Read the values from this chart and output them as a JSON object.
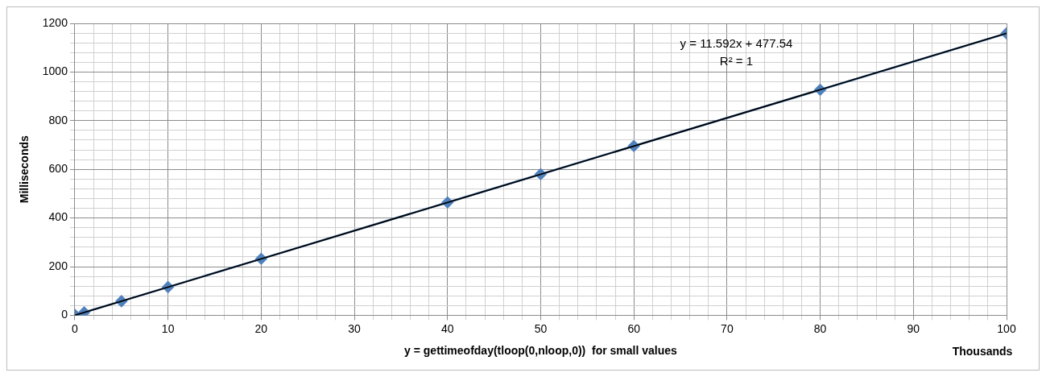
{
  "chart_data": {
    "type": "line",
    "xlabel": "y = gettimeofday(tloop(0,nloop,0))  for small values",
    "ylabel": "Milliseconds",
    "x": [
      0,
      1,
      5,
      10,
      20,
      40,
      50,
      60,
      80,
      100
    ],
    "series": [
      {
        "type": "line",
        "color": "#4f81bd",
        "marker": "diamond",
        "values": [
          2,
          12,
          58,
          116,
          232,
          464,
          580,
          696,
          927,
          1159
        ]
      },
      {
        "type": "line",
        "color": "#000000",
        "marker": "none",
        "x": [
          0,
          100
        ],
        "values": [
          0,
          1159
        ]
      }
    ],
    "xlim": [
      0,
      100
    ],
    "ylim": [
      0,
      1200
    ],
    "xticks": [
      0,
      {
        "value": 2,
        "label": null
      },
      {
        "value": 4,
        "label": null
      },
      {
        "value": 6,
        "label": null
      },
      {
        "value": 8,
        "label": null
      },
      10,
      {
        "value": 12,
        "label": null
      },
      {
        "value": 14,
        "label": null
      },
      {
        "value": 16,
        "label": null
      },
      {
        "value": 18,
        "label": null
      },
      20,
      {
        "value": 22,
        "label": null
      },
      {
        "value": 24,
        "label": null
      },
      {
        "value": 26,
        "label": null
      },
      {
        "value": 28,
        "label": null
      },
      30,
      {
        "value": 32,
        "label": null
      },
      {
        "value": 34,
        "label": null
      },
      {
        "value": 36,
        "label": null
      },
      {
        "value": 38,
        "label": null
      },
      40,
      {
        "value": 42,
        "label": null
      },
      {
        "value": 44,
        "label": null
      },
      {
        "value": 46,
        "label": null
      },
      {
        "value": 48,
        "label": null
      },
      50,
      {
        "value": 52,
        "label": null
      },
      {
        "value": 54,
        "label": null
      },
      {
        "value": 56,
        "label": null
      },
      {
        "value": 58,
        "label": null
      },
      60,
      {
        "value": 62,
        "label": null
      },
      {
        "value": 64,
        "label": null
      },
      {
        "value": 66,
        "label": null
      },
      {
        "value": 68,
        "label": null
      },
      70,
      {
        "value": 72,
        "label": null
      },
      {
        "value": 74,
        "label": null
      },
      {
        "value": 76,
        "label": null
      },
      {
        "value": 78,
        "label": null
      },
      80,
      {
        "value": 82,
        "label": null
      },
      {
        "value": 84,
        "label": null
      },
      {
        "value": 86,
        "label": null
      },
      {
        "value": 88,
        "label": null
      },
      90,
      {
        "value": 92,
        "label": null
      },
      {
        "value": 94,
        "label": null
      },
      {
        "value": 96,
        "label": null
      },
      {
        "value": 98,
        "label": null
      },
      100
    ],
    "yticks": [
      0,
      {
        "value": 40,
        "label": null
      },
      {
        "value": 80,
        "label": null
      },
      {
        "value": 120,
        "label": null
      },
      {
        "value": 160,
        "label": null
      },
      200,
      {
        "value": 240,
        "label": null
      },
      {
        "value": 280,
        "label": null
      },
      {
        "value": 320,
        "label": null
      },
      {
        "value": 360,
        "label": null
      },
      400,
      {
        "value": 440,
        "label": null
      },
      {
        "value": 480,
        "label": null
      },
      {
        "value": 520,
        "label": null
      },
      {
        "value": 560,
        "label": null
      },
      600,
      {
        "value": 640,
        "label": null
      },
      {
        "value": 680,
        "label": null
      },
      {
        "value": 720,
        "label": null
      },
      {
        "value": 760,
        "label": null
      },
      800,
      {
        "value": 840,
        "label": null
      },
      {
        "value": 880,
        "label": null
      },
      {
        "value": 920,
        "label": null
      },
      {
        "value": 960,
        "label": null
      },
      1000,
      {
        "value": 1040,
        "label": null
      },
      {
        "value": 1080,
        "label": null
      },
      {
        "value": 1120,
        "label": null
      },
      {
        "value": 1160,
        "label": null
      },
      1200
    ],
    "grid": true,
    "legend": false,
    "annotations": [
      "y = 11.592x + 477.54",
      "R² = 1",
      "Thousands"
    ]
  }
}
